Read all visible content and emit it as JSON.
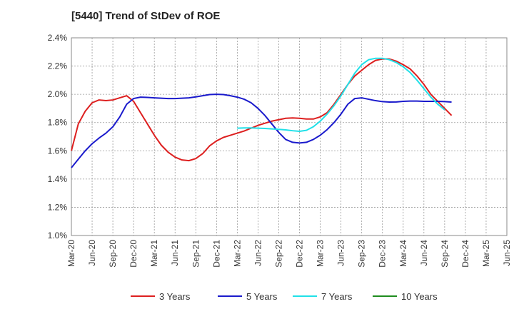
{
  "chart_data": {
    "type": "line",
    "title": "[5440]  Trend of StDev of ROE",
    "xlabel": "",
    "ylabel": "",
    "ylim": [
      1.0,
      2.4
    ],
    "y_ticks": [
      "1.0%",
      "1.2%",
      "1.4%",
      "1.6%",
      "1.8%",
      "2.0%",
      "2.2%",
      "2.4%"
    ],
    "x_ticks": [
      "Mar-20",
      "Jun-20",
      "Sep-20",
      "Dec-20",
      "Mar-21",
      "Jun-21",
      "Sep-21",
      "Dec-21",
      "Mar-22",
      "Jun-22",
      "Sep-22",
      "Dec-22",
      "Mar-23",
      "Jun-23",
      "Sep-23",
      "Dec-23",
      "Mar-24",
      "Jun-24",
      "Sep-24",
      "Dec-24",
      "Mar-25",
      "Jun-25"
    ],
    "grid": true,
    "legend_position": "bottom",
    "series": [
      {
        "name": "3 Years",
        "color": "#dd1f1f",
        "points": [
          [
            0,
            1.6
          ],
          [
            1,
            1.79
          ],
          [
            2,
            1.88
          ],
          [
            3,
            1.94
          ],
          [
            4,
            1.96
          ],
          [
            5,
            1.955
          ],
          [
            6,
            1.96
          ],
          [
            7,
            1.975
          ],
          [
            8,
            1.99
          ],
          [
            9,
            1.95
          ],
          [
            10,
            1.87
          ],
          [
            11,
            1.79
          ],
          [
            12,
            1.71
          ],
          [
            13,
            1.64
          ],
          [
            14,
            1.59
          ],
          [
            15,
            1.555
          ],
          [
            16,
            1.535
          ],
          [
            17,
            1.53
          ],
          [
            18,
            1.545
          ],
          [
            19,
            1.58
          ],
          [
            20,
            1.635
          ],
          [
            21,
            1.67
          ],
          [
            22,
            1.695
          ],
          [
            23,
            1.71
          ],
          [
            24,
            1.725
          ],
          [
            25,
            1.74
          ],
          [
            26,
            1.76
          ],
          [
            27,
            1.78
          ],
          [
            28,
            1.795
          ],
          [
            29,
            1.81
          ],
          [
            30,
            1.82
          ],
          [
            31,
            1.83
          ],
          [
            32,
            1.833
          ],
          [
            33,
            1.83
          ],
          [
            34,
            1.825
          ],
          [
            35,
            1.825
          ],
          [
            36,
            1.84
          ],
          [
            37,
            1.87
          ],
          [
            38,
            1.93
          ],
          [
            39,
            2.0
          ],
          [
            40,
            2.07
          ],
          [
            41,
            2.13
          ],
          [
            42,
            2.17
          ],
          [
            43,
            2.21
          ],
          [
            44,
            2.24
          ],
          [
            45,
            2.25
          ],
          [
            46,
            2.25
          ],
          [
            47,
            2.235
          ],
          [
            48,
            2.21
          ],
          [
            49,
            2.18
          ],
          [
            50,
            2.13
          ],
          [
            51,
            2.07
          ],
          [
            52,
            2.0
          ],
          [
            53,
            1.95
          ],
          [
            54,
            1.9
          ],
          [
            55,
            1.85
          ]
        ]
      },
      {
        "name": "5 Years",
        "color": "#1a1acc",
        "points": [
          [
            0,
            1.48
          ],
          [
            1,
            1.54
          ],
          [
            2,
            1.6
          ],
          [
            3,
            1.65
          ],
          [
            4,
            1.69
          ],
          [
            5,
            1.725
          ],
          [
            6,
            1.77
          ],
          [
            7,
            1.84
          ],
          [
            8,
            1.93
          ],
          [
            9,
            1.97
          ],
          [
            10,
            1.98
          ],
          [
            11,
            1.978
          ],
          [
            12,
            1.975
          ],
          [
            13,
            1.972
          ],
          [
            14,
            1.97
          ],
          [
            15,
            1.97
          ],
          [
            16,
            1.972
          ],
          [
            17,
            1.975
          ],
          [
            18,
            1.982
          ],
          [
            19,
            1.99
          ],
          [
            20,
            1.998
          ],
          [
            21,
            2.0
          ],
          [
            22,
            1.998
          ],
          [
            23,
            1.99
          ],
          [
            24,
            1.98
          ],
          [
            25,
            1.965
          ],
          [
            26,
            1.94
          ],
          [
            27,
            1.9
          ],
          [
            28,
            1.85
          ],
          [
            29,
            1.79
          ],
          [
            30,
            1.73
          ],
          [
            31,
            1.68
          ],
          [
            32,
            1.66
          ],
          [
            33,
            1.655
          ],
          [
            34,
            1.66
          ],
          [
            35,
            1.68
          ],
          [
            36,
            1.71
          ],
          [
            37,
            1.75
          ],
          [
            38,
            1.8
          ],
          [
            39,
            1.86
          ],
          [
            40,
            1.93
          ],
          [
            41,
            1.97
          ],
          [
            42,
            1.975
          ],
          [
            43,
            1.965
          ],
          [
            44,
            1.955
          ],
          [
            45,
            1.948
          ],
          [
            46,
            1.945
          ],
          [
            47,
            1.946
          ],
          [
            48,
            1.95
          ],
          [
            49,
            1.952
          ],
          [
            50,
            1.952
          ],
          [
            51,
            1.95
          ],
          [
            52,
            1.95
          ],
          [
            53,
            1.95
          ],
          [
            54,
            1.948
          ],
          [
            55,
            1.945
          ]
        ]
      },
      {
        "name": "7 Years",
        "color": "#20e0e8",
        "points": [
          [
            24,
            1.76
          ],
          [
            25,
            1.762
          ],
          [
            26,
            1.762
          ],
          [
            27,
            1.76
          ],
          [
            28,
            1.758
          ],
          [
            29,
            1.755
          ],
          [
            30,
            1.752
          ],
          [
            31,
            1.748
          ],
          [
            32,
            1.742
          ],
          [
            33,
            1.738
          ],
          [
            34,
            1.745
          ],
          [
            35,
            1.77
          ],
          [
            36,
            1.81
          ],
          [
            37,
            1.86
          ],
          [
            38,
            1.92
          ],
          [
            39,
            1.99
          ],
          [
            40,
            2.07
          ],
          [
            41,
            2.15
          ],
          [
            42,
            2.21
          ],
          [
            43,
            2.245
          ],
          [
            44,
            2.255
          ],
          [
            45,
            2.255
          ],
          [
            46,
            2.245
          ],
          [
            47,
            2.225
          ],
          [
            48,
            2.195
          ],
          [
            49,
            2.155
          ],
          [
            50,
            2.1
          ],
          [
            51,
            2.04
          ],
          [
            52,
            1.98
          ],
          [
            53,
            1.93
          ],
          [
            54,
            1.89
          ]
        ]
      },
      {
        "name": "10 Years",
        "color": "#1e8c1e",
        "points": []
      }
    ]
  }
}
